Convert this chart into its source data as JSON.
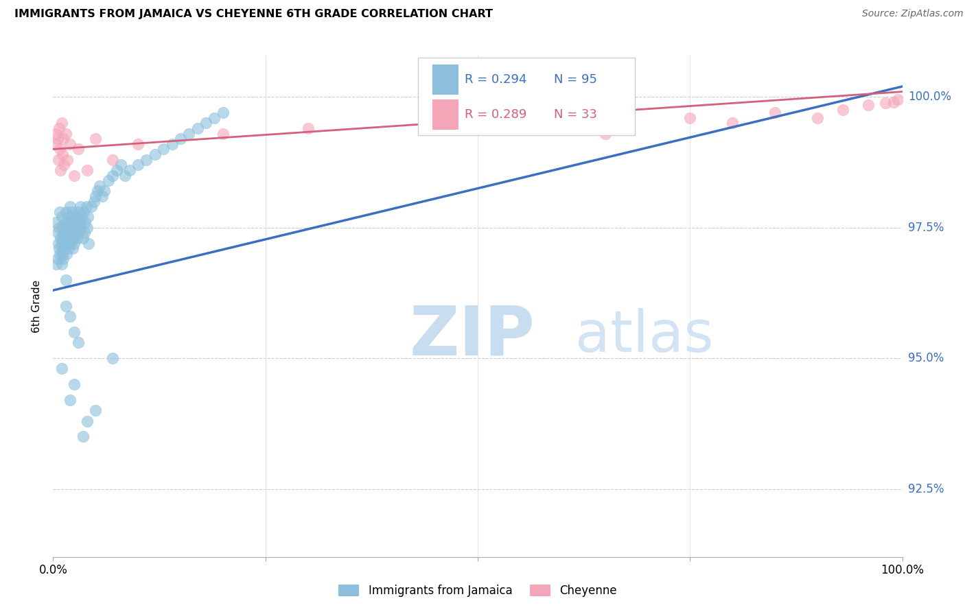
{
  "title": "IMMIGRANTS FROM JAMAICA VS CHEYENNE 6TH GRADE CORRELATION CHART",
  "source": "Source: ZipAtlas.com",
  "ylabel": "6th Grade",
  "ytick_labels": [
    "92.5%",
    "95.0%",
    "97.5%",
    "100.0%"
  ],
  "ytick_values": [
    92.5,
    95.0,
    97.5,
    100.0
  ],
  "xmin": 0.0,
  "xmax": 100.0,
  "ymin": 91.2,
  "ymax": 100.8,
  "legend_r1": "R = 0.294",
  "legend_n1": "N = 95",
  "legend_r2": "R = 0.289",
  "legend_n2": "N = 33",
  "legend_label1": "Immigrants from Jamaica",
  "legend_label2": "Cheyenne",
  "color_blue": "#8bbfdb",
  "color_pink": "#f4a5b8",
  "color_blue_line": "#3a6fc4",
  "color_pink_line": "#d4607a",
  "watermark_zip": "ZIP",
  "watermark_atlas": "atlas",
  "blue_scatter_x": [
    0.3,
    0.4,
    0.5,
    0.5,
    0.6,
    0.7,
    0.7,
    0.8,
    0.8,
    0.9,
    1.0,
    1.0,
    1.0,
    1.1,
    1.1,
    1.2,
    1.2,
    1.3,
    1.3,
    1.4,
    1.5,
    1.5,
    1.6,
    1.6,
    1.7,
    1.7,
    1.8,
    1.8,
    1.9,
    2.0,
    2.0,
    2.0,
    2.1,
    2.1,
    2.2,
    2.2,
    2.3,
    2.3,
    2.4,
    2.5,
    2.5,
    2.6,
    2.7,
    2.8,
    2.9,
    3.0,
    3.0,
    3.1,
    3.2,
    3.3,
    3.4,
    3.5,
    3.6,
    3.7,
    3.8,
    3.9,
    4.0,
    4.1,
    4.2,
    4.5,
    4.8,
    5.0,
    5.2,
    5.5,
    5.8,
    6.0,
    6.5,
    7.0,
    7.5,
    8.0,
    8.5,
    9.0,
    10.0,
    11.0,
    12.0,
    13.0,
    14.0,
    15.0,
    16.0,
    17.0,
    18.0,
    19.0,
    20.0,
    1.5,
    1.5,
    2.0,
    2.5,
    3.0,
    1.0,
    2.0,
    4.0,
    3.5,
    2.5,
    5.0,
    7.0
  ],
  "blue_scatter_y": [
    97.6,
    96.8,
    97.4,
    96.9,
    97.2,
    97.5,
    97.1,
    97.8,
    97.0,
    97.3,
    97.7,
    97.2,
    96.8,
    97.5,
    97.0,
    97.3,
    96.9,
    97.4,
    97.1,
    97.6,
    97.8,
    97.3,
    97.5,
    97.0,
    97.2,
    97.6,
    97.4,
    97.1,
    97.7,
    97.9,
    97.5,
    97.2,
    97.6,
    97.3,
    97.8,
    97.4,
    97.5,
    97.1,
    97.3,
    97.6,
    97.2,
    97.4,
    97.7,
    97.5,
    97.3,
    97.8,
    97.4,
    97.6,
    97.9,
    97.5,
    97.7,
    97.3,
    97.8,
    97.4,
    97.6,
    97.9,
    97.5,
    97.7,
    97.2,
    97.9,
    98.0,
    98.1,
    98.2,
    98.3,
    98.1,
    98.2,
    98.4,
    98.5,
    98.6,
    98.7,
    98.5,
    98.6,
    98.7,
    98.8,
    98.9,
    99.0,
    99.1,
    99.2,
    99.3,
    99.4,
    99.5,
    99.6,
    99.7,
    96.5,
    96.0,
    95.8,
    95.5,
    95.3,
    94.8,
    94.2,
    93.8,
    93.5,
    94.5,
    94.0,
    95.0
  ],
  "pink_scatter_x": [
    0.3,
    0.4,
    0.5,
    0.6,
    0.7,
    0.8,
    0.9,
    1.0,
    1.1,
    1.2,
    1.3,
    1.5,
    1.7,
    2.0,
    2.5,
    3.0,
    4.0,
    5.0,
    7.0,
    10.0,
    20.0,
    30.0,
    55.0,
    65.0,
    75.0,
    80.0,
    85.0,
    90.0,
    93.0,
    96.0,
    98.0,
    99.0,
    99.5
  ],
  "pink_scatter_y": [
    99.1,
    99.3,
    99.2,
    98.8,
    99.4,
    99.0,
    98.6,
    99.5,
    98.9,
    99.2,
    98.7,
    99.3,
    98.8,
    99.1,
    98.5,
    99.0,
    98.6,
    99.2,
    98.8,
    99.1,
    99.3,
    99.4,
    99.5,
    99.3,
    99.6,
    99.5,
    99.7,
    99.6,
    99.75,
    99.85,
    99.88,
    99.9,
    99.95
  ],
  "blue_line_x": [
    0.0,
    100.0
  ],
  "blue_line_y": [
    96.3,
    100.2
  ],
  "pink_line_x": [
    0.0,
    100.0
  ],
  "pink_line_y": [
    99.0,
    100.1
  ]
}
